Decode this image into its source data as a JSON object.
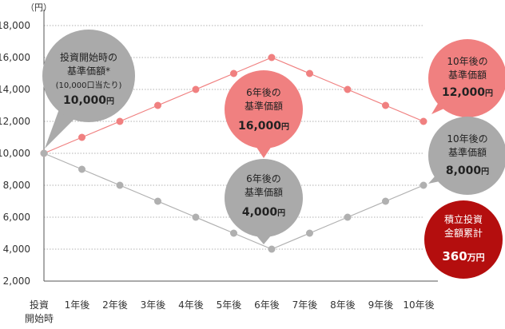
{
  "chart_data": {
    "type": "line",
    "unit_label": "（円）",
    "ylim": [
      2000,
      18000
    ],
    "y_ticks": [
      "2,000",
      "4,000",
      "6,000",
      "8,000",
      "10,000",
      "12,000",
      "14,000",
      "16,000",
      "18,000"
    ],
    "y_tick_values": [
      2000,
      4000,
      6000,
      8000,
      10000,
      12000,
      14000,
      16000,
      18000
    ],
    "grid": true,
    "categories": [
      [
        "投資",
        "開始時"
      ],
      [
        "1年後"
      ],
      [
        "2年後"
      ],
      [
        "3年後"
      ],
      [
        "4年後"
      ],
      [
        "5年後"
      ],
      [
        "6年後"
      ],
      [
        "7年後"
      ],
      [
        "8年後"
      ],
      [
        "9年後"
      ],
      [
        "10年後"
      ]
    ],
    "series": [
      {
        "color": "#f08080",
        "values": [
          10000,
          11000,
          12000,
          13000,
          14000,
          15000,
          16000,
          15000,
          14000,
          13000,
          12000
        ]
      },
      {
        "color": "#b0b0b0",
        "values": [
          10000,
          9000,
          8000,
          7000,
          6000,
          5000,
          4000,
          5000,
          6000,
          7000,
          8000
        ]
      }
    ]
  },
  "bubbles": {
    "start": {
      "color": "#aaaaaa",
      "lines": [
        "投資開始時の",
        "基準価額*",
        "(10,000口当たり)"
      ],
      "value": "10,000",
      "unit": "円"
    },
    "pink_peak": {
      "color": "#f08080",
      "lines": [
        "6年後の",
        "基準価額"
      ],
      "value": "16,000",
      "unit": "円"
    },
    "gray_trough": {
      "color": "#aaaaaa",
      "lines": [
        "6年後の",
        "基準価額"
      ],
      "value": "4,000",
      "unit": "円"
    },
    "pink_end": {
      "color": "#f08080",
      "lines": [
        "10年後の",
        "基準価額"
      ],
      "value": "12,000",
      "unit": "円"
    },
    "gray_end": {
      "color": "#aaaaaa",
      "lines": [
        "10年後の",
        "基準価額"
      ],
      "value": "8,000",
      "unit": "円"
    },
    "total": {
      "color": "#b40e0e",
      "lines": [
        "積立投資",
        "金額累計"
      ],
      "value": "360",
      "unit": "万円"
    }
  }
}
